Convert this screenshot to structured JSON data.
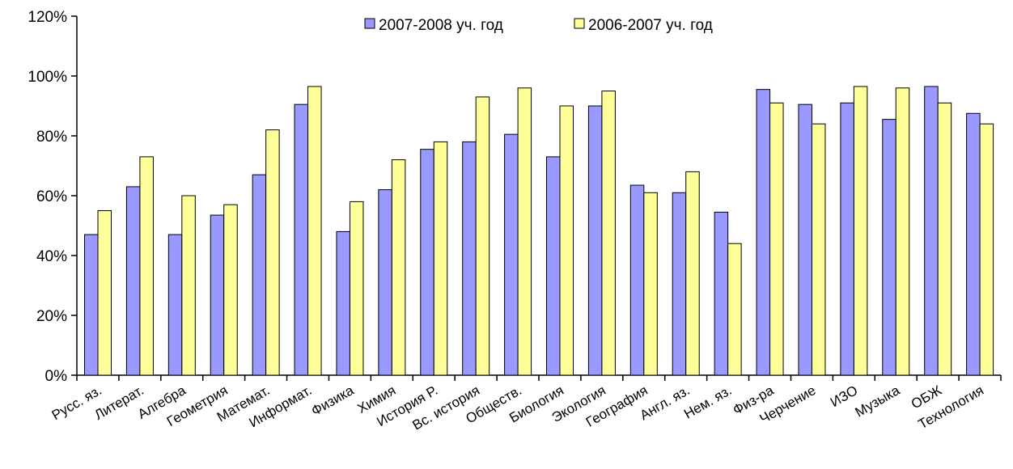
{
  "chart_data": {
    "type": "bar",
    "title": "",
    "xlabel": "",
    "ylabel": "",
    "ylim": [
      0,
      1.2
    ],
    "y_ticks": [
      "0%",
      "20%",
      "40%",
      "60%",
      "80%",
      "100%",
      "120%"
    ],
    "grid": false,
    "legend_position": "top-center",
    "categories": [
      "Русс. яз.",
      "Литерат.",
      "Алгебра",
      "Геометрия",
      "Математ.",
      "Информат.",
      "Физика",
      "Химия",
      "История Р.",
      "Вс. история",
      "Обществ.",
      "Биология",
      "Экология",
      "География",
      "Англ. яз.",
      "Нем. яз.",
      "Физ-ра",
      "Черчение",
      "ИЗО",
      "Музыка",
      "ОБЖ",
      "Технология"
    ],
    "series": [
      {
        "name": "2007-2008 уч. год",
        "color": "#9999ff",
        "values": [
          0.47,
          0.63,
          0.47,
          0.535,
          0.67,
          0.905,
          0.48,
          0.62,
          0.755,
          0.78,
          0.805,
          0.73,
          0.9,
          0.635,
          0.61,
          0.545,
          0.955,
          0.905,
          0.91,
          0.855,
          0.965,
          0.875
        ]
      },
      {
        "name": "2006-2007 уч. год",
        "color": "#ffff99",
        "values": [
          0.55,
          0.73,
          0.6,
          0.57,
          0.82,
          0.965,
          0.58,
          0.72,
          0.78,
          0.93,
          0.96,
          0.9,
          0.95,
          0.61,
          0.68,
          0.44,
          0.91,
          0.84,
          0.965,
          0.96,
          0.91,
          0.84
        ]
      }
    ]
  }
}
